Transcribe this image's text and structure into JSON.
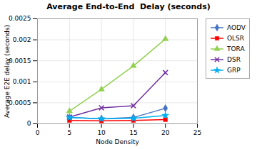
{
  "chart_data": {
    "type": "line",
    "title": "Average End-to-End  Delay (seconds)",
    "xlabel": "Node Density",
    "ylabel": "Average E2E delay (seconds)",
    "x": [
      5,
      10,
      15,
      20
    ],
    "series": [
      {
        "name": "AODV",
        "color": "#4472C4",
        "marker": "diamond",
        "values": [
          0.00015,
          0.00012,
          0.00015,
          0.00037
        ]
      },
      {
        "name": "OLSR",
        "color": "#FF0000",
        "marker": "square",
        "values": [
          8e-05,
          7e-05,
          8e-05,
          0.0001
        ]
      },
      {
        "name": "TORA",
        "color": "#92D050",
        "marker": "triangle",
        "values": [
          0.0003,
          0.00082,
          0.00138,
          0.00202
        ]
      },
      {
        "name": "DSR",
        "color": "#7030A0",
        "marker": "x",
        "values": [
          0.00016,
          0.00038,
          0.00043,
          0.00122
        ]
      },
      {
        "name": "GRP",
        "color": "#00B0F0",
        "marker": "star",
        "values": [
          0.00015,
          0.00012,
          0.00013,
          0.0002
        ]
      }
    ],
    "xlim": [
      0,
      25
    ],
    "ylim": [
      0,
      0.0025
    ],
    "xticks": [
      0,
      5,
      10,
      15,
      20,
      25
    ],
    "yticks": [
      0,
      0.0005,
      0.001,
      0.0015,
      0.002,
      0.0025
    ],
    "grid": true,
    "legend": "right"
  }
}
